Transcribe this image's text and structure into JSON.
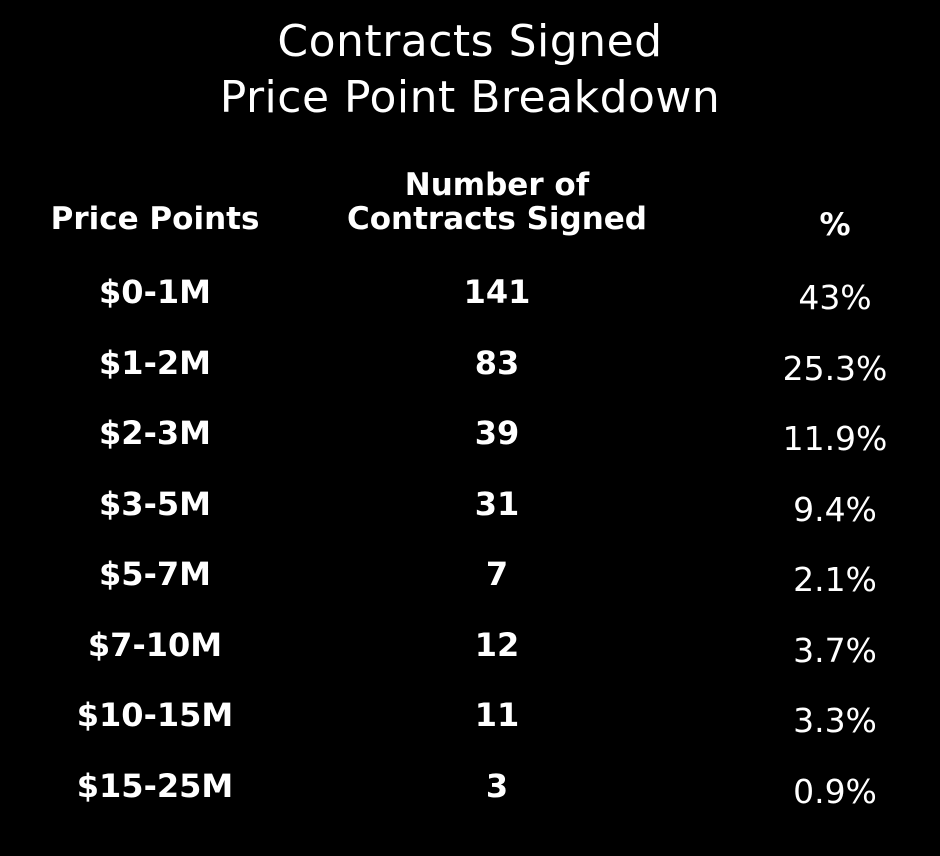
{
  "chart_data": {
    "type": "table",
    "title": "Contracts Signed",
    "subtitle": "Price Point Breakdown",
    "columns": [
      "Price Points",
      "Number of\nContracts Signed",
      "%"
    ],
    "column_header_lines": {
      "price": [
        "Price Points"
      ],
      "count": [
        "Number of",
        "Contracts Signed"
      ],
      "pct": [
        "%"
      ]
    },
    "rows": [
      {
        "price": "$0-1M",
        "count": "141",
        "pct": "43%"
      },
      {
        "price": "$1-2M",
        "count": "83",
        "pct": "25.3%"
      },
      {
        "price": "$2-3M",
        "count": "39",
        "pct": "11.9%"
      },
      {
        "price": "$3-5M",
        "count": "31",
        "pct": "9.4%"
      },
      {
        "price": "$5-7M",
        "count": "7",
        "pct": "2.1%"
      },
      {
        "price": "$7-10M",
        "count": "12",
        "pct": "3.7%"
      },
      {
        "price": "$10-15M",
        "count": "11",
        "pct": "3.3%"
      },
      {
        "price": "$15-25M",
        "count": "3",
        "pct": "0.9%"
      }
    ],
    "colors": {
      "background": "#000000",
      "text": "#ffffff"
    }
  }
}
